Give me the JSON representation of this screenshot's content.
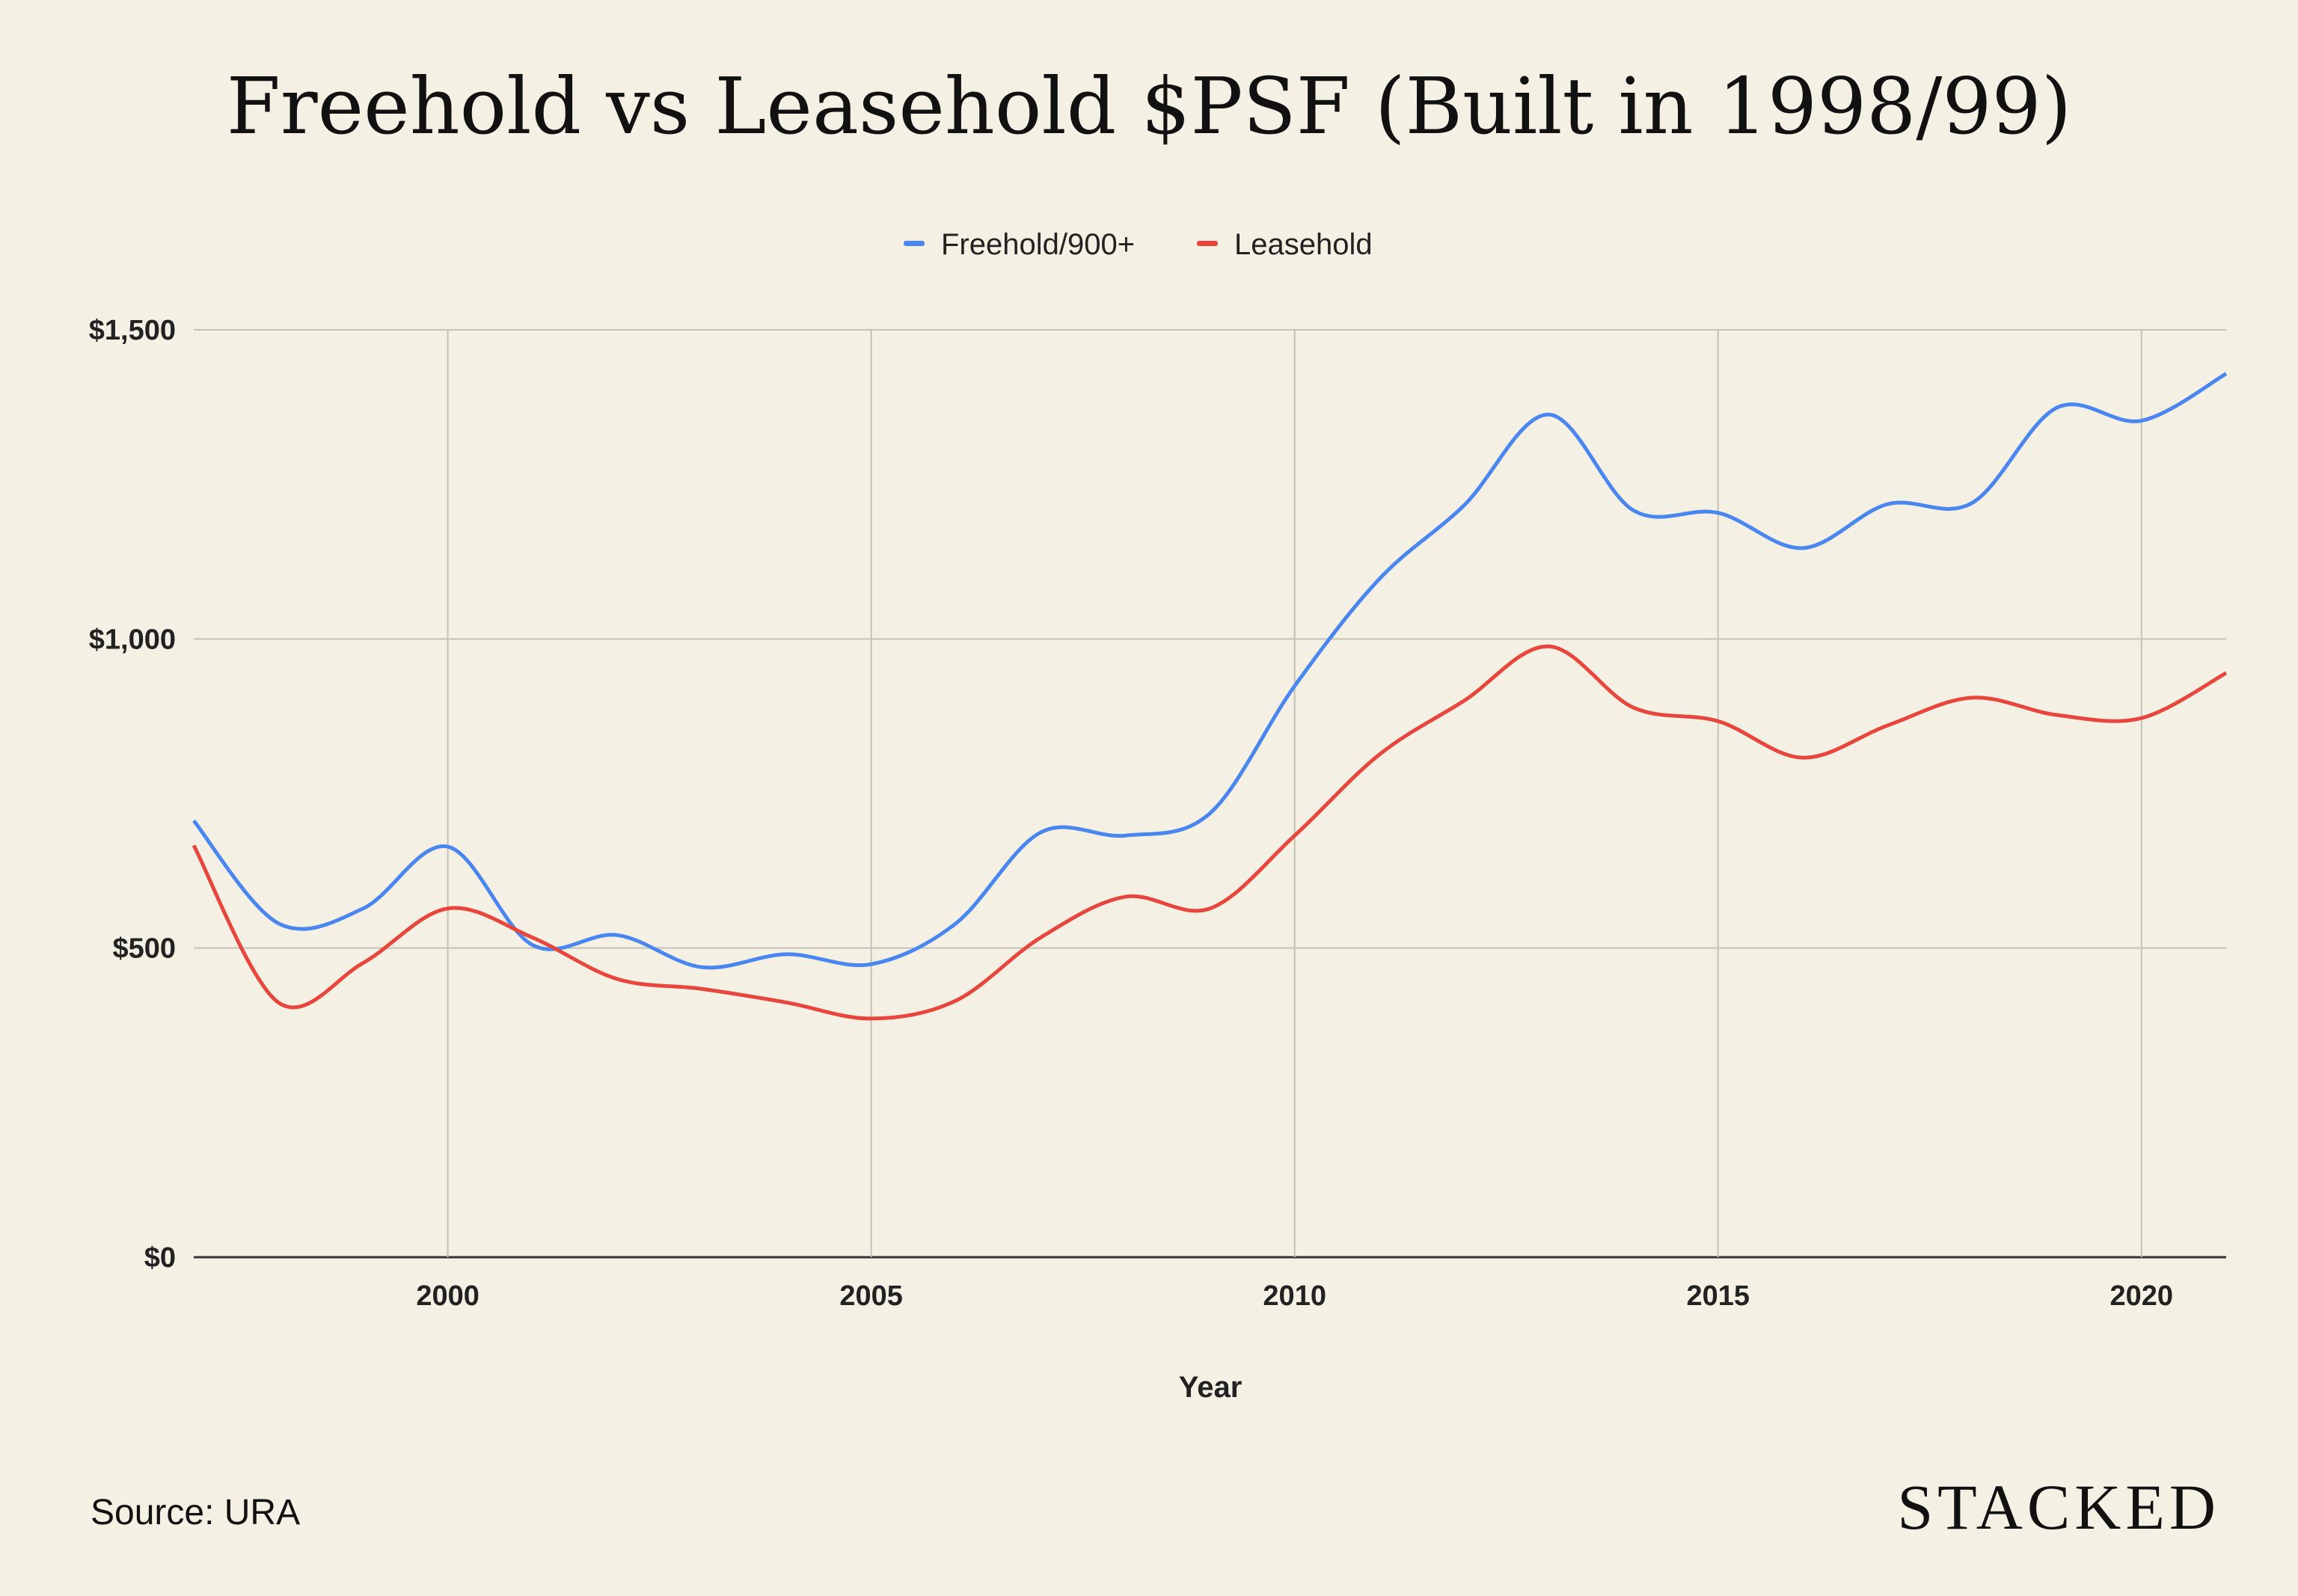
{
  "chart_data": {
    "type": "line",
    "title": "Freehold vs Leasehold $PSF (Built in 1998/99)",
    "xlabel": "Year",
    "ylabel": "",
    "x": [
      1997,
      1998,
      1999,
      2000,
      2001,
      2002,
      2003,
      2004,
      2005,
      2006,
      2007,
      2008,
      2009,
      2010,
      2011,
      2012,
      2013,
      2014,
      2015,
      2016,
      2017,
      2018,
      2019,
      2020,
      2021
    ],
    "xlim": [
      1997,
      2021
    ],
    "ylim": [
      0,
      1500
    ],
    "x_ticks": [
      2000,
      2005,
      2010,
      2015,
      2020
    ],
    "x_tick_labels": [
      "2000",
      "2005",
      "2010",
      "2015",
      "2020"
    ],
    "y_ticks": [
      0,
      500,
      1000,
      1500
    ],
    "y_tick_labels": [
      "$0",
      "$500",
      "$1,000",
      "$1,500"
    ],
    "grid": true,
    "legend_position": "top-center",
    "series": [
      {
        "name": "Freehold/900+",
        "color": "#4A86F0",
        "values": [
          706,
          540,
          564,
          664,
          505,
          521,
          469,
          490,
          474,
          540,
          687,
          682,
          718,
          924,
          1097,
          1216,
          1363,
          1208,
          1204,
          1147,
          1218,
          1220,
          1374,
          1353,
          1429
        ]
      },
      {
        "name": "Leasehold",
        "color": "#E8453C",
        "values": [
          666,
          412,
          476,
          564,
          517,
          450,
          434,
          412,
          386,
          415,
          517,
          583,
          564,
          682,
          813,
          900,
          988,
          889,
          867,
          808,
          860,
          905,
          877,
          872,
          945
        ]
      }
    ]
  },
  "footer": {
    "source": "Source: URA",
    "brand": "STACKED"
  }
}
